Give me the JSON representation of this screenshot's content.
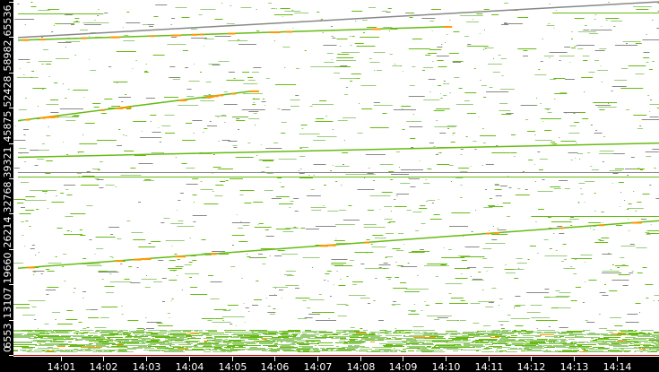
{
  "chart_data": {
    "type": "scatter",
    "title": "",
    "xlabel": "",
    "ylabel": "",
    "ylim": [
      0,
      65536
    ],
    "xlim": [
      "14:00:00",
      "14:15:00"
    ],
    "y_ticks": [
      "0",
      "6553",
      "13107",
      "19660",
      "26214",
      "32768",
      "39321",
      "45875",
      "52428",
      "58982",
      "65536"
    ],
    "x_ticks": [
      "14:01",
      "14:02",
      "14:03",
      "14:04",
      "14:05",
      "14:06",
      "14:07",
      "14:08",
      "14:09",
      "14:10",
      "14:11",
      "14:12",
      "14:13",
      "14:14"
    ],
    "grid": false,
    "colors": {
      "low": "#99cc77",
      "medium": "#66bb11",
      "high": "#ff9900",
      "peak": "#ff3300",
      "sparse": "#888888",
      "axis_bg": "#000000",
      "baseline": "#dd0000"
    },
    "trend_lines": [
      {
        "start": [
          "14:00:00",
          16100
        ],
        "end": [
          "14:15:00",
          24900
        ],
        "color": "medium",
        "hot": true
      },
      {
        "start": [
          "14:00:00",
          43470
        ],
        "end": [
          "14:05:27",
          48940
        ],
        "color": "medium",
        "hot": true
      },
      {
        "start": [
          "14:00:00",
          36670
        ],
        "end": [
          "14:15:00",
          39320
        ],
        "color": "medium",
        "hot": false
      },
      {
        "start": [
          "14:00:00",
          58900
        ],
        "end": [
          "14:15:00",
          65536
        ],
        "color": "sparse",
        "hot": false
      },
      {
        "start": [
          "14:00:00",
          58400
        ],
        "end": [
          "14:10:00",
          60900
        ],
        "color": "medium",
        "hot": true
      }
    ],
    "horizontal_lines": [
      {
        "port": 34010,
        "color": "sparse",
        "from": "14:00:00",
        "to": "14:15:00"
      },
      {
        "port": 33180,
        "color": "medium",
        "from": "14:00:00",
        "to": "14:15:00"
      },
      {
        "port": 63380,
        "color": "medium",
        "from": "14:00:00",
        "to": "14:02:00"
      },
      {
        "port": 63550,
        "color": "medium",
        "from": "14:12:30",
        "to": "14:15:00"
      },
      {
        "port": 25700,
        "color": "medium",
        "from": "14:12:00",
        "to": "14:15:00"
      }
    ],
    "dense_band": {
      "from_port": 500,
      "to_port": 4600,
      "from": "14:00:00",
      "to": "14:15:00"
    }
  }
}
